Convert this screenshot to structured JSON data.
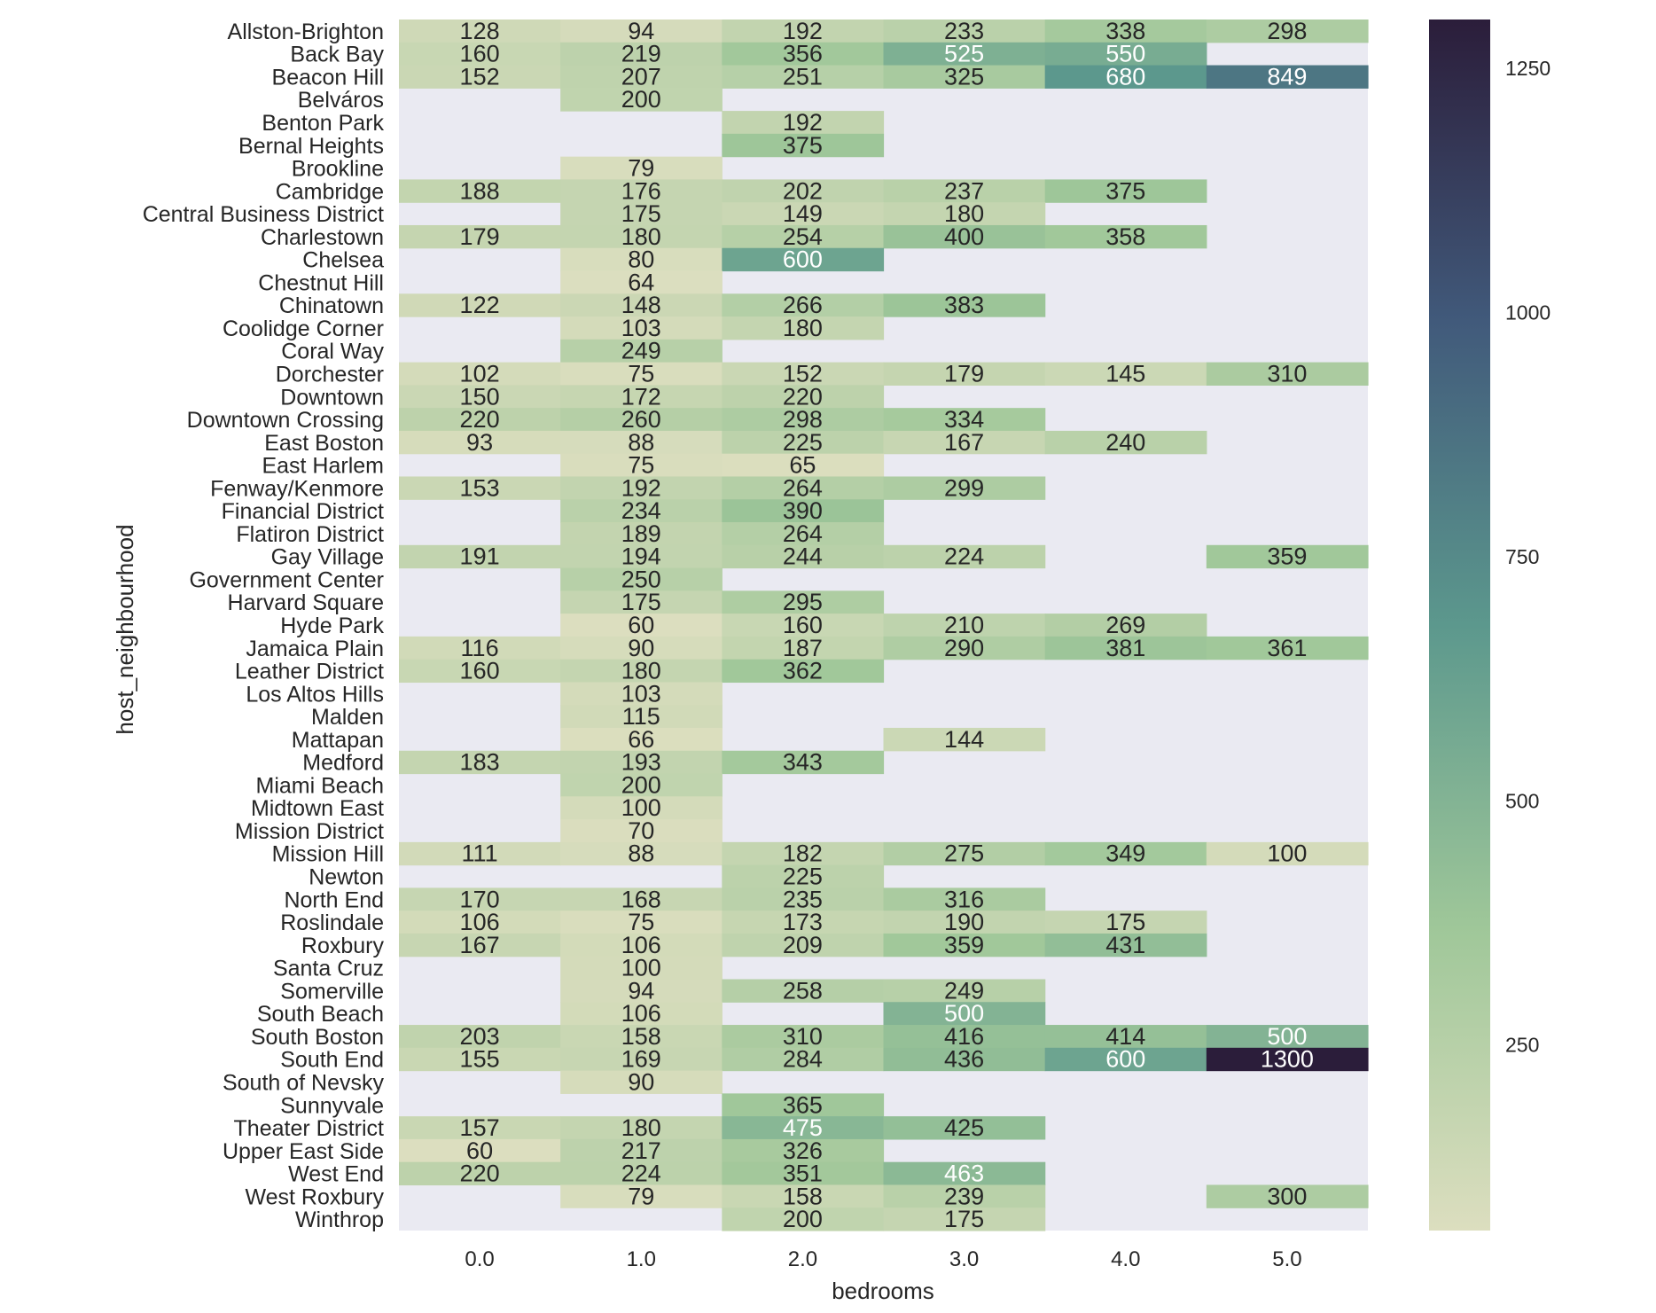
{
  "chart_data": {
    "type": "heatmap",
    "title": "",
    "xlabel": "bedrooms",
    "ylabel": "host_neighbourhood",
    "x": [
      "0.0",
      "1.0",
      "2.0",
      "3.0",
      "4.0",
      "5.0"
    ],
    "y": [
      "Allston-Brighton",
      "Back Bay",
      "Beacon Hill",
      "Belváros",
      "Benton Park",
      "Bernal Heights",
      "Brookline",
      "Cambridge",
      "Central Business District",
      "Charlestown",
      "Chelsea",
      "Chestnut Hill",
      "Chinatown",
      "Coolidge Corner",
      "Coral Way",
      "Dorchester",
      "Downtown",
      "Downtown Crossing",
      "East Boston",
      "East Harlem",
      "Fenway/Kenmore",
      "Financial District",
      "Flatiron District",
      "Gay Village",
      "Government Center",
      "Harvard Square",
      "Hyde Park",
      "Jamaica Plain",
      "Leather District",
      "Los Altos Hills",
      "Malden",
      "Mattapan",
      "Medford",
      "Miami Beach",
      "Midtown East",
      "Mission District",
      "Mission Hill",
      "Newton",
      "North End",
      "Roslindale",
      "Roxbury",
      "Santa Cruz",
      "Somerville",
      "South Beach",
      "South Boston",
      "South End",
      "South of Nevsky",
      "Sunnyvale",
      "Theater District",
      "Upper East Side",
      "West End",
      "West Roxbury",
      "Winthrop"
    ],
    "values": [
      [
        128,
        94,
        192,
        233,
        338,
        298
      ],
      [
        160,
        219,
        356,
        525,
        550,
        null
      ],
      [
        152,
        207,
        251,
        325,
        680,
        849
      ],
      [
        null,
        200,
        null,
        null,
        null,
        null
      ],
      [
        null,
        null,
        192,
        null,
        null,
        null
      ],
      [
        null,
        null,
        375,
        null,
        null,
        null
      ],
      [
        null,
        79,
        null,
        null,
        null,
        null
      ],
      [
        188,
        176,
        202,
        237,
        375,
        null
      ],
      [
        null,
        175,
        149,
        180,
        null,
        null
      ],
      [
        179,
        180,
        254,
        400,
        358,
        null
      ],
      [
        null,
        80,
        600,
        null,
        null,
        null
      ],
      [
        null,
        64,
        null,
        null,
        null,
        null
      ],
      [
        122,
        148,
        266,
        383,
        null,
        null
      ],
      [
        null,
        103,
        180,
        null,
        null,
        null
      ],
      [
        null,
        249,
        null,
        null,
        null,
        null
      ],
      [
        102,
        75,
        152,
        179,
        145,
        310
      ],
      [
        150,
        172,
        220,
        null,
        null,
        null
      ],
      [
        220,
        260,
        298,
        334,
        null,
        null
      ],
      [
        93,
        88,
        225,
        167,
        240,
        null
      ],
      [
        null,
        75,
        65,
        null,
        null,
        null
      ],
      [
        153,
        192,
        264,
        299,
        null,
        null
      ],
      [
        null,
        234,
        390,
        null,
        null,
        null
      ],
      [
        null,
        189,
        264,
        null,
        null,
        null
      ],
      [
        191,
        194,
        244,
        224,
        null,
        359
      ],
      [
        null,
        250,
        null,
        null,
        null,
        null
      ],
      [
        null,
        175,
        295,
        null,
        null,
        null
      ],
      [
        null,
        60,
        160,
        210,
        269,
        null
      ],
      [
        116,
        90,
        187,
        290,
        381,
        361
      ],
      [
        160,
        180,
        362,
        null,
        null,
        null
      ],
      [
        null,
        103,
        null,
        null,
        null,
        null
      ],
      [
        null,
        115,
        null,
        null,
        null,
        null
      ],
      [
        null,
        66,
        null,
        144,
        null,
        null
      ],
      [
        183,
        193,
        343,
        null,
        null,
        null
      ],
      [
        null,
        200,
        null,
        null,
        null,
        null
      ],
      [
        null,
        100,
        null,
        null,
        null,
        null
      ],
      [
        null,
        70,
        null,
        null,
        null,
        null
      ],
      [
        111,
        88,
        182,
        275,
        349,
        100
      ],
      [
        null,
        null,
        225,
        null,
        null,
        null
      ],
      [
        170,
        168,
        235,
        316,
        null,
        null
      ],
      [
        106,
        75,
        173,
        190,
        175,
        null
      ],
      [
        167,
        106,
        209,
        359,
        431,
        null
      ],
      [
        null,
        100,
        null,
        null,
        null,
        null
      ],
      [
        null,
        94,
        258,
        249,
        null,
        null
      ],
      [
        null,
        106,
        null,
        500,
        null,
        null
      ],
      [
        203,
        158,
        310,
        416,
        414,
        500
      ],
      [
        155,
        169,
        284,
        436,
        600,
        1300
      ],
      [
        null,
        90,
        null,
        null,
        null,
        null
      ],
      [
        null,
        null,
        365,
        null,
        null,
        null
      ],
      [
        157,
        180,
        475,
        425,
        null,
        null
      ],
      [
        60,
        217,
        326,
        null,
        null,
        null
      ],
      [
        220,
        224,
        351,
        463,
        null,
        null
      ],
      [
        null,
        79,
        158,
        239,
        null,
        300
      ],
      [
        null,
        null,
        200,
        175,
        null,
        null
      ]
    ],
    "colorbar": {
      "ticks": [
        "250",
        "500",
        "750",
        "1000",
        "1250"
      ],
      "range": [
        60,
        1300
      ]
    },
    "colors": {
      "background": "#eaeaf2",
      "colormap": [
        "#dcdebf",
        "#9fc799",
        "#5c988d",
        "#415a7b",
        "#2b1d3a"
      ],
      "text_dark": "#262626",
      "text_light": "#ffffff"
    }
  }
}
